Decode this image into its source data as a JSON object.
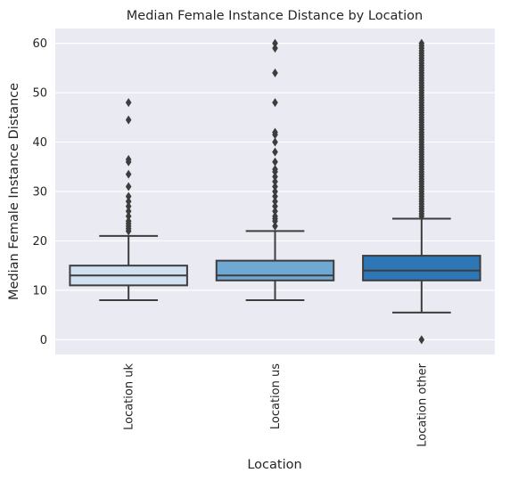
{
  "chart_data": {
    "type": "boxplot",
    "title": "Median Female Instance Distance by Location",
    "xlabel": "Location",
    "ylabel": "Median Female Instance Distance",
    "ylim": [
      -3,
      63
    ],
    "yticks": [
      0,
      10,
      20,
      30,
      40,
      50,
      60
    ],
    "grid": true,
    "categories": [
      "Location uk",
      "Location us",
      "Location other"
    ],
    "boxes": [
      {
        "category": "Location uk",
        "color": "#d0e1f2",
        "whisker_low": 8,
        "q1": 11,
        "median": 13,
        "q3": 15,
        "whisker_high": 21,
        "outliers": [
          22,
          22.5,
          23,
          23.5,
          24,
          25,
          26,
          27,
          28,
          29,
          31,
          33.5,
          36,
          36.5,
          44.5,
          48
        ]
      },
      {
        "category": "Location us",
        "color": "#6fa8d3",
        "whisker_low": 8,
        "q1": 12,
        "median": 13,
        "q3": 16,
        "whisker_high": 22,
        "outliers": [
          23,
          24,
          24.5,
          25,
          26,
          27,
          28,
          29,
          30,
          31,
          32,
          33,
          34,
          34.5,
          36,
          38,
          40,
          41.5,
          42,
          48,
          54,
          59,
          60
        ]
      },
      {
        "category": "Location other",
        "color": "#2e77b6",
        "whisker_low": 5.5,
        "q1": 12,
        "median": 14,
        "q3": 17,
        "whisker_high": 24.5,
        "outliers": [
          0,
          25,
          25.5,
          26,
          26.5,
          27,
          27.5,
          28,
          28.5,
          29,
          29.5,
          30,
          30.5,
          31,
          31.5,
          32,
          32.5,
          33,
          33.5,
          34,
          34.5,
          35,
          35.5,
          36,
          36.5,
          37,
          37.5,
          38,
          38.5,
          39,
          39.5,
          40,
          40.5,
          41,
          41.5,
          42,
          42.5,
          43,
          43.5,
          44,
          44.5,
          45,
          45.5,
          46,
          46.5,
          47,
          47.5,
          48,
          48.5,
          49,
          49.5,
          50,
          50.5,
          51,
          51.5,
          52,
          52.5,
          53,
          53.5,
          54,
          54.5,
          55,
          55.5,
          56,
          56.5,
          57,
          57.5,
          58,
          58.5,
          59,
          59.5,
          60
        ]
      }
    ]
  },
  "style": {
    "plot_background": "#eaeaf2",
    "grid_color": "#ffffff",
    "line_color": "#3d3d3d",
    "text_color": "#262626"
  }
}
